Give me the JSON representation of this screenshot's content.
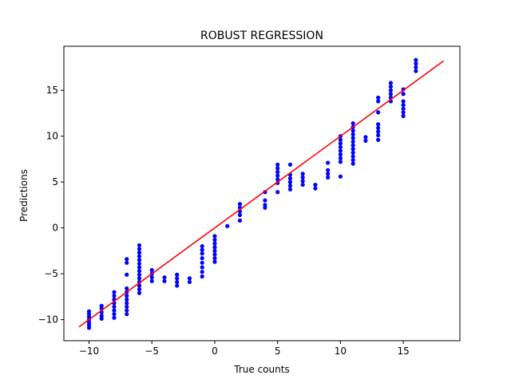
{
  "chart_data": {
    "type": "scatter",
    "title": "ROBUST REGRESSION",
    "xlabel": "True counts",
    "ylabel": "Predictions",
    "xlim": [
      -12.0,
      19.5
    ],
    "ylim": [
      -12.3,
      19.8
    ],
    "xticks": [
      -10,
      -5,
      0,
      5,
      10,
      15
    ],
    "yticks": [
      -10,
      -5,
      0,
      5,
      10,
      15
    ],
    "grid": false,
    "colors": {
      "points": "#0000ff",
      "line": "#ff0000"
    },
    "series": [
      {
        "kind": "points",
        "points": [
          [
            -10,
            -9.1
          ],
          [
            -10,
            -9.4
          ],
          [
            -10,
            -9.7
          ],
          [
            -10,
            -10.0
          ],
          [
            -10,
            -10.3
          ],
          [
            -10,
            -10.6
          ],
          [
            -10,
            -10.9
          ],
          [
            -9,
            -8.5
          ],
          [
            -9,
            -8.8
          ],
          [
            -9,
            -9.2
          ],
          [
            -9,
            -9.6
          ],
          [
            -9,
            -9.9
          ],
          [
            -8,
            -7.0
          ],
          [
            -8,
            -7.4
          ],
          [
            -8,
            -7.8
          ],
          [
            -8,
            -8.2
          ],
          [
            -8,
            -8.6
          ],
          [
            -8,
            -9.0
          ],
          [
            -8,
            -9.4
          ],
          [
            -8,
            -9.8
          ],
          [
            -7,
            -3.4
          ],
          [
            -7,
            -3.8
          ],
          [
            -7,
            -5.1
          ],
          [
            -7,
            -6.6
          ],
          [
            -7,
            -7.0
          ],
          [
            -7,
            -7.4
          ],
          [
            -7,
            -7.8
          ],
          [
            -7,
            -8.2
          ],
          [
            -7,
            -8.6
          ],
          [
            -7,
            -9.0
          ],
          [
            -7,
            -9.4
          ],
          [
            -6,
            -1.9
          ],
          [
            -6,
            -2.3
          ],
          [
            -6,
            -2.7
          ],
          [
            -6,
            -3.1
          ],
          [
            -6,
            -3.5
          ],
          [
            -6,
            -3.9
          ],
          [
            -6,
            -4.3
          ],
          [
            -6,
            -4.7
          ],
          [
            -6,
            -5.1
          ],
          [
            -6,
            -5.5
          ],
          [
            -6,
            -5.9
          ],
          [
            -6,
            -6.3
          ],
          [
            -6,
            -6.7
          ],
          [
            -6,
            -7.1
          ],
          [
            -5,
            -4.6
          ],
          [
            -5,
            -5.0
          ],
          [
            -5,
            -5.4
          ],
          [
            -5,
            -5.8
          ],
          [
            -4,
            -5.4
          ],
          [
            -4,
            -5.8
          ],
          [
            -3,
            -5.1
          ],
          [
            -3,
            -5.5
          ],
          [
            -3,
            -5.9
          ],
          [
            -3,
            -6.3
          ],
          [
            -2,
            -5.5
          ],
          [
            -2,
            -5.9
          ],
          [
            -1,
            -2.0
          ],
          [
            -1,
            -2.4
          ],
          [
            -1,
            -2.8
          ],
          [
            -1,
            -3.3
          ],
          [
            -1,
            -3.8
          ],
          [
            -1,
            -4.3
          ],
          [
            -1,
            -4.8
          ],
          [
            -1,
            -5.3
          ],
          [
            0,
            -0.9
          ],
          [
            0,
            -1.3
          ],
          [
            0,
            -1.7
          ],
          [
            0,
            -2.1
          ],
          [
            0,
            -2.5
          ],
          [
            0,
            -2.9
          ],
          [
            0,
            -3.3
          ],
          [
            0,
            -3.7
          ],
          [
            1,
            0.2
          ],
          [
            2,
            2.6
          ],
          [
            2,
            2.2
          ],
          [
            2,
            1.8
          ],
          [
            2,
            1.4
          ],
          [
            2,
            0.8
          ],
          [
            4,
            3.9
          ],
          [
            4,
            3.0
          ],
          [
            4,
            2.5
          ],
          [
            4,
            2.2
          ],
          [
            5,
            6.9
          ],
          [
            5,
            6.5
          ],
          [
            5,
            6.1
          ],
          [
            5,
            5.7
          ],
          [
            5,
            5.3
          ],
          [
            5,
            4.9
          ],
          [
            5,
            3.9
          ],
          [
            6,
            6.9
          ],
          [
            6,
            5.8
          ],
          [
            6,
            5.4
          ],
          [
            6,
            5.0
          ],
          [
            6,
            4.6
          ],
          [
            6,
            4.2
          ],
          [
            7,
            5.9
          ],
          [
            7,
            5.5
          ],
          [
            7,
            5.1
          ],
          [
            7,
            4.7
          ],
          [
            8,
            4.7
          ],
          [
            8,
            4.3
          ],
          [
            9,
            7.1
          ],
          [
            9,
            6.3
          ],
          [
            9,
            5.9
          ],
          [
            9,
            5.5
          ],
          [
            10,
            10.0
          ],
          [
            10,
            9.6
          ],
          [
            10,
            9.2
          ],
          [
            10,
            8.8
          ],
          [
            10,
            8.4
          ],
          [
            10,
            8.0
          ],
          [
            10,
            7.6
          ],
          [
            10,
            7.2
          ],
          [
            10,
            5.6
          ],
          [
            11,
            11.4
          ],
          [
            11,
            11.0
          ],
          [
            11,
            10.6
          ],
          [
            11,
            10.2
          ],
          [
            11,
            9.8
          ],
          [
            11,
            9.4
          ],
          [
            11,
            9.0
          ],
          [
            11,
            8.6
          ],
          [
            11,
            8.2
          ],
          [
            11,
            7.8
          ],
          [
            11,
            7.4
          ],
          [
            11,
            7.0
          ],
          [
            12,
            9.9
          ],
          [
            12,
            9.5
          ],
          [
            13,
            14.2
          ],
          [
            13,
            13.8
          ],
          [
            13,
            12.6
          ],
          [
            13,
            11.3
          ],
          [
            13,
            10.9
          ],
          [
            13,
            10.5
          ],
          [
            13,
            10.1
          ],
          [
            13,
            9.6
          ],
          [
            14,
            15.8
          ],
          [
            14,
            15.4
          ],
          [
            14,
            15.0
          ],
          [
            14,
            14.6
          ],
          [
            14,
            14.2
          ],
          [
            14,
            13.8
          ],
          [
            15,
            15.1
          ],
          [
            15,
            14.6
          ],
          [
            15,
            13.8
          ],
          [
            15,
            13.4
          ],
          [
            15,
            13.0
          ],
          [
            15,
            12.6
          ],
          [
            15,
            12.2
          ],
          [
            16,
            18.3
          ],
          [
            16,
            17.9
          ],
          [
            16,
            17.5
          ],
          [
            16,
            17.1
          ]
        ]
      },
      {
        "kind": "line",
        "points": [
          [
            -10.8,
            -10.8
          ],
          [
            18.2,
            18.2
          ]
        ]
      }
    ]
  }
}
